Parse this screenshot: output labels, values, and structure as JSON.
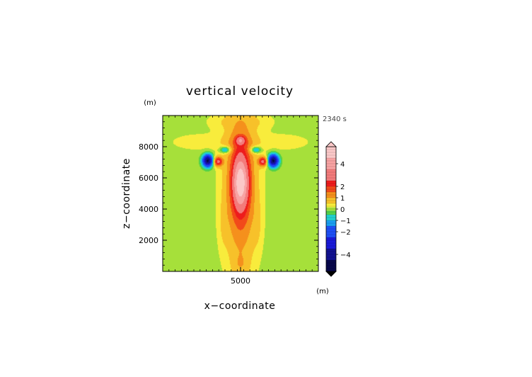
{
  "chart_data": {
    "type": "heatmap",
    "title": "vertical velocity",
    "xlabel": "x−coordinate",
    "ylabel": "z−coordinate",
    "x_unit": "(m)",
    "y_unit": "(m)",
    "time_label": "2340 s",
    "xlim": [
      0,
      10000
    ],
    "ylim": [
      0,
      10000
    ],
    "x_ticks": [
      {
        "value": 5000,
        "label": "5000"
      }
    ],
    "y_ticks": [
      {
        "value": 2000,
        "label": "2000"
      },
      {
        "value": 4000,
        "label": "4000"
      },
      {
        "value": 6000,
        "label": "6000"
      },
      {
        "value": 8000,
        "label": "8000"
      }
    ],
    "colorbar": {
      "min": -5.5,
      "max": 5.5,
      "ticks": [
        {
          "value": 4,
          "label": "4"
        },
        {
          "value": 2,
          "label": "2"
        },
        {
          "value": 1,
          "label": "1"
        },
        {
          "value": 0,
          "label": "0"
        },
        {
          "value": -1,
          "label": "−1"
        },
        {
          "value": -2,
          "label": "−2"
        },
        {
          "value": -4,
          "label": "−4"
        }
      ],
      "levels": [
        {
          "from": 4.5,
          "to": 5.5,
          "color": "#fbc8c8"
        },
        {
          "from": 3.5,
          "to": 4.5,
          "color": "#f8a3a3"
        },
        {
          "from": 2.5,
          "to": 3.5,
          "color": "#f37b7b"
        },
        {
          "from": 2.0,
          "to": 2.5,
          "color": "#ee1c1c"
        },
        {
          "from": 1.5,
          "to": 2.0,
          "color": "#f24a1a"
        },
        {
          "from": 1.0,
          "to": 1.5,
          "color": "#f5901c"
        },
        {
          "from": 0.5,
          "to": 1.0,
          "color": "#f7c12a"
        },
        {
          "from": 0.15,
          "to": 0.5,
          "color": "#f8ec3c"
        },
        {
          "from": -0.15,
          "to": 0.15,
          "color": "#a6e03a"
        },
        {
          "from": -0.5,
          "to": -0.15,
          "color": "#52d24a"
        },
        {
          "from": -1.0,
          "to": -0.5,
          "color": "#21cfcf"
        },
        {
          "from": -1.5,
          "to": -1.0,
          "color": "#1a9ef0"
        },
        {
          "from": -2.5,
          "to": -1.5,
          "color": "#1e4ff5"
        },
        {
          "from": -3.5,
          "to": -2.5,
          "color": "#1a1ad8"
        },
        {
          "from": -4.5,
          "to": -3.5,
          "color": "#121290"
        },
        {
          "from": -5.5,
          "to": -4.5,
          "color": "#07074a"
        }
      ]
    },
    "field_components": [
      {
        "kind": "column",
        "x": 5000,
        "z": 5500,
        "sx": 1000,
        "sz": 4800,
        "amp": 2.0
      },
      {
        "kind": "core",
        "x": 5000,
        "z": 5700,
        "sx": 480,
        "sz": 1600,
        "amp": 3.5
      },
      {
        "kind": "cap",
        "x": 5000,
        "z": 8400,
        "sx": 300,
        "sz": 260,
        "amp": 2.0
      },
      {
        "kind": "vortex",
        "x": 3550,
        "z": 7050,
        "sx": 300,
        "sz": 300,
        "amp": 2.6
      },
      {
        "kind": "vortex",
        "x": 6450,
        "z": 7050,
        "sx": 300,
        "sz": 300,
        "amp": 2.6
      },
      {
        "kind": "downdraft",
        "x": 2900,
        "z": 7100,
        "sx": 320,
        "sz": 380,
        "amp": -4.8
      },
      {
        "kind": "downdraft",
        "x": 7100,
        "z": 7100,
        "sx": 320,
        "sz": 380,
        "amp": -4.8
      },
      {
        "kind": "downdraft",
        "x": 4050,
        "z": 7800,
        "sx": 350,
        "sz": 220,
        "amp": -1.6
      },
      {
        "kind": "downdraft",
        "x": 5950,
        "z": 7800,
        "sx": 350,
        "sz": 220,
        "amp": -1.6
      },
      {
        "kind": "anvil",
        "x": 2500,
        "z": 8300,
        "sx": 2200,
        "sz": 600,
        "amp": 0.3
      },
      {
        "kind": "anvil",
        "x": 7500,
        "z": 8300,
        "sx": 2200,
        "sz": 600,
        "amp": 0.3
      },
      {
        "kind": "anvil",
        "x": 3600,
        "z": 9600,
        "sx": 900,
        "sz": 500,
        "amp": 0.3
      },
      {
        "kind": "anvil",
        "x": 6400,
        "z": 9600,
        "sx": 900,
        "sz": 500,
        "amp": 0.3
      },
      {
        "kind": "flank",
        "x": 3900,
        "z": 3000,
        "sx": 300,
        "sz": 1500,
        "amp": 0.3
      },
      {
        "kind": "flank",
        "x": 6100,
        "z": 3000,
        "sx": 300,
        "sz": 1500,
        "amp": 0.3
      },
      {
        "kind": "base",
        "x": 5000,
        "z": 400,
        "sx": 500,
        "sz": 700,
        "amp": 0.4
      }
    ]
  }
}
